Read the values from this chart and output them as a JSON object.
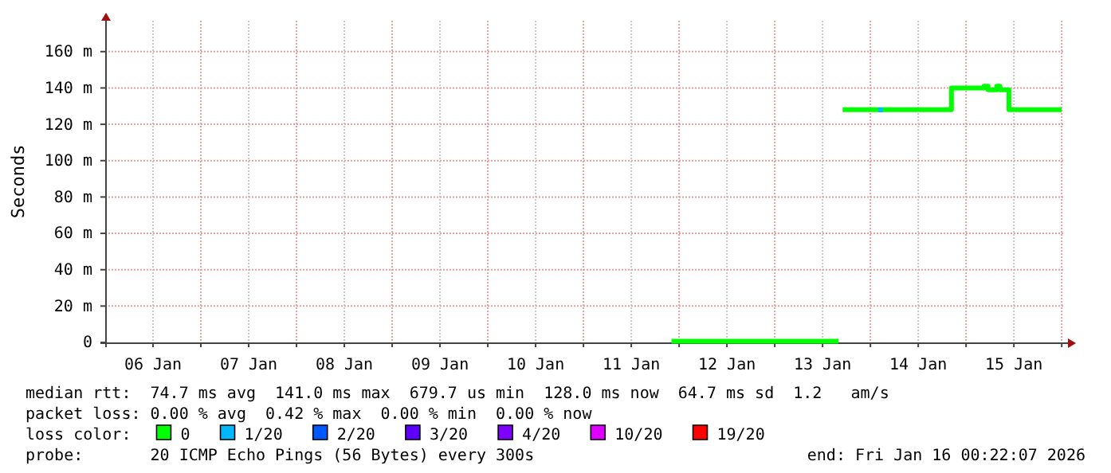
{
  "chart_data": {
    "type": "line",
    "ylabel": "Seconds",
    "xlim": [
      "2026-01-06T00:00",
      "2026-01-16T00:22"
    ],
    "ylim": [
      0,
      177
    ],
    "yticks": [
      0,
      {
        "value": 20,
        "label": "20 m"
      },
      {
        "value": 40,
        "label": "40 m"
      },
      {
        "value": 60,
        "label": "60 m"
      },
      {
        "value": 80,
        "label": "80 m"
      },
      {
        "value": 100,
        "label": "100 m"
      },
      {
        "value": 120,
        "label": "120 m"
      },
      {
        "value": 140,
        "label": "140 m"
      },
      {
        "value": 160,
        "label": "160 m"
      }
    ],
    "xticks": [
      {
        "value": "2026-01-06T12:00",
        "label": "06 Jan"
      },
      {
        "value": "2026-01-07T00:00",
        "label": null
      },
      {
        "value": "2026-01-07T12:00",
        "label": "07 Jan"
      },
      {
        "value": "2026-01-08T00:00",
        "label": null
      },
      {
        "value": "2026-01-08T12:00",
        "label": "08 Jan"
      },
      {
        "value": "2026-01-09T00:00",
        "label": null
      },
      {
        "value": "2026-01-09T12:00",
        "label": "09 Jan"
      },
      {
        "value": "2026-01-10T00:00",
        "label": null
      },
      {
        "value": "2026-01-10T12:00",
        "label": "10 Jan"
      },
      {
        "value": "2026-01-11T00:00",
        "label": null
      },
      {
        "value": "2026-01-11T12:00",
        "label": "11 Jan"
      },
      {
        "value": "2026-01-12T00:00",
        "label": null
      },
      {
        "value": "2026-01-12T12:00",
        "label": "12 Jan"
      },
      {
        "value": "2026-01-13T00:00",
        "label": null
      },
      {
        "value": "2026-01-13T12:00",
        "label": "13 Jan"
      },
      {
        "value": "2026-01-14T00:00",
        "label": null
      },
      {
        "value": "2026-01-14T12:00",
        "label": "14 Jan"
      },
      {
        "value": "2026-01-15T00:00",
        "label": null
      },
      {
        "value": "2026-01-15T12:00",
        "label": "15 Jan"
      },
      {
        "value": "2026-01-16T00:00",
        "label": null
      }
    ],
    "grid": true,
    "legend": "bottom",
    "legend_title": "loss color:",
    "series": [
      {
        "name": "0",
        "color": "#00ff00",
        "x": [
          "2026-01-11T22:05",
          "2026-01-13T16:00",
          "2026-01-13T16:30",
          "2026-01-13T17:02",
          "2026-01-14T20:20",
          "2026-01-14T20:20",
          "2026-01-15T04:30",
          "2026-01-15T04:30",
          "2026-01-15T05:31",
          "2026-01-15T05:31",
          "2026-01-15T07:41",
          "2026-01-15T07:41",
          "2026-01-15T08:30",
          "2026-01-15T08:30",
          "2026-01-15T10:45",
          "2026-01-15T10:45",
          "2026-01-16T00:00"
        ],
        "values": [
          0.7,
          0.7,
          null,
          128,
          128,
          140,
          140,
          141,
          141,
          139,
          139,
          141,
          141,
          139,
          139,
          128,
          128
        ]
      },
      {
        "name": "1/20",
        "color": "#00b8ff",
        "type": "scatter",
        "marker": "square",
        "x": [
          "2026-01-14T02:31"
        ],
        "values": [
          128
        ]
      },
      {
        "name": "2/20",
        "color": "#0059ff",
        "type": "scatter",
        "marker": "square"
      },
      {
        "name": "3/20",
        "color": "#5e00ff",
        "type": "scatter",
        "marker": "square"
      },
      {
        "name": "4/20",
        "color": "#7e00ff",
        "type": "scatter",
        "marker": "square"
      },
      {
        "name": "10/20",
        "color": "#dd00ff",
        "type": "scatter",
        "marker": "square"
      },
      {
        "name": "19/20",
        "color": "#ff0000",
        "type": "scatter",
        "marker": "square"
      }
    ],
    "annotations": [
      "median rtt:  74.7 ms avg  141.0 ms max  679.7 us min  128.0 ms now  64.7 ms sd  1.2   am/s",
      "packet loss: 0.00 % avg  0.42 % max  0.00 % min  0.00 % now",
      "probe:       20 ICMP Echo Pings (56 Bytes) every 300s",
      "end: Fri Jan 16 00:22:07 2026"
    ]
  }
}
